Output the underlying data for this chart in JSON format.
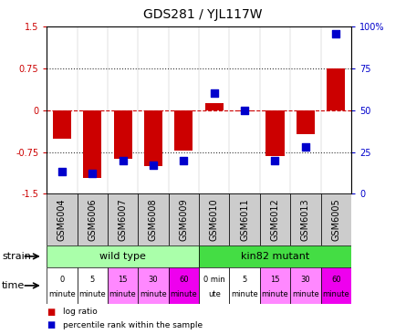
{
  "title": "GDS281 / YJL117W",
  "samples": [
    "GSM6004",
    "GSM6006",
    "GSM6007",
    "GSM6008",
    "GSM6009",
    "GSM6010",
    "GSM6011",
    "GSM6012",
    "GSM6013",
    "GSM6005"
  ],
  "log_ratios": [
    -0.52,
    -1.22,
    -0.87,
    -1.0,
    -0.72,
    0.12,
    -0.02,
    -0.82,
    -0.43,
    0.75
  ],
  "percentile_ranks": [
    13,
    12,
    20,
    17,
    20,
    60,
    50,
    20,
    28,
    96
  ],
  "ylim_left": [
    -1.5,
    1.5
  ],
  "ylim_right": [
    0,
    100
  ],
  "yticks_left": [
    -1.5,
    -0.75,
    0,
    0.75,
    1.5
  ],
  "yticks_right": [
    0,
    25,
    50,
    75,
    100
  ],
  "hlines_dotted": [
    0.75,
    -0.75
  ],
  "zero_line_y": 0,
  "bar_color": "#cc0000",
  "scatter_color": "#0000cc",
  "wild_type_color": "#aaffaa",
  "mutant_color": "#44dd44",
  "time_colors": [
    "#ffffff",
    "#ffffff",
    "#ff88ff",
    "#ff88ff",
    "#ee00ee",
    "#ffffff",
    "#ffffff",
    "#ff88ff",
    "#ff88ff",
    "#ee00ee"
  ],
  "sample_bg_color": "#cccccc",
  "wild_type_label": "wild type",
  "mutant_label": "kin82 mutant",
  "strain_label": "strain",
  "time_label": "time",
  "time_labels_top": [
    "0",
    "5",
    "15",
    "30",
    "60",
    "0 min",
    "5",
    "15",
    "30",
    "60"
  ],
  "time_labels_bot": [
    "minute",
    "minute",
    "minute",
    "minute",
    "minute",
    "ute",
    "minute",
    "minute",
    "minute",
    "minute"
  ],
  "legend_log": "log ratio",
  "legend_pct": "percentile rank within the sample",
  "bar_width": 0.6,
  "scatter_size": 30,
  "tick_fontsize": 7,
  "title_fontsize": 10,
  "label_fontsize": 7,
  "strain_fontsize": 8,
  "time_fontsize": 6
}
